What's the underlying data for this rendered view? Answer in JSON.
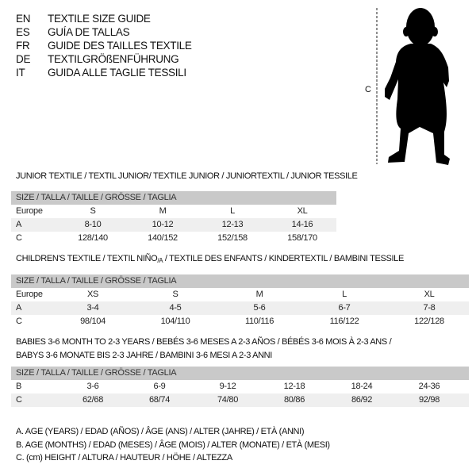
{
  "header": {
    "languages": [
      {
        "code": "EN",
        "title": "TEXTILE SIZE GUIDE"
      },
      {
        "code": "ES",
        "title": "GUÍA DE TALLAS"
      },
      {
        "code": "FR",
        "title": "GUIDE DES TAILLES TEXTILE"
      },
      {
        "code": "DE",
        "title": "TEXTILGRÖßENFÜHRUNG"
      },
      {
        "code": "IT",
        "title": "GUIDA ALLE TAGLIE TESSILI"
      }
    ]
  },
  "figure": {
    "icon": "child-silhouette-icon",
    "measure_label": "C"
  },
  "junior": {
    "title": "JUNIOR TEXTILE / TEXTIL JUNIOR/ TEXTILE JUNIOR / JUNIORTEXTIL / JUNIOR TESSILE",
    "header": "SIZE / TALLA / TAILLE / GRÖSSE / TAGLIA",
    "rows": [
      {
        "label": "Europe",
        "values": [
          "S",
          "M",
          "L",
          "XL"
        ]
      },
      {
        "label": "A",
        "values": [
          "8-10",
          "10-12",
          "12-13",
          "14-16"
        ]
      },
      {
        "label": "C",
        "values": [
          "128/140",
          "140/152",
          "152/158",
          "158/170"
        ]
      }
    ]
  },
  "children": {
    "title_main": "CHILDREN'S TEXTILE / TEXTIL NIÑO",
    "title_sub": "/A",
    "title_rest": " / TEXTILE DES ENFANTS / KINDERTEXTIL / BAMBINI TESSILE",
    "header": "SIZE / TALLA / TAILLE / GRÖSSE / TAGLIA",
    "rows": [
      {
        "label": "Europe",
        "values": [
          "XS",
          "S",
          "M",
          "L",
          "XL"
        ]
      },
      {
        "label": "A",
        "values": [
          "3-4",
          "4-5",
          "5-6",
          "6-7",
          "7-8"
        ]
      },
      {
        "label": "C",
        "values": [
          "98/104",
          "104/110",
          "110/116",
          "116/122",
          "122/128"
        ]
      }
    ]
  },
  "babies": {
    "title_line1": "BABIES 3-6 MONTH TO 2-3 YEARS / BEBÉS 3-6 MESES A 2-3 AÑOS / BÉBÉS 3-6 MOIS À 2-3 ANS /",
    "title_line2": "BABYS 3-6 MONATE BIS 2-3 JAHRE / BAMBINI 3-6 MESI A 2-3 ANNI",
    "header": "SIZE / TALLA / TAILLE / GRÖSSE / TAGLIA",
    "rows": [
      {
        "label": "B",
        "values": [
          "3-6",
          "6-9",
          "9-12",
          "12-18",
          "18-24",
          "24-36"
        ]
      },
      {
        "label": "C",
        "values": [
          "62/68",
          "68/74",
          "74/80",
          "80/86",
          "86/92",
          "92/98"
        ]
      }
    ]
  },
  "legend": [
    "A. AGE (YEARS) / EDAD (AÑOS) / ÂGE (ANS) / ALTER (JAHRE) / ETÀ (ANNI)",
    "B. AGE (MONTHS) / EDAD (MESES) / ÂGE (MOIS) / ALTER (MONATE) / ETÀ (MESI)",
    "C. (cm) HEIGHT / ALTURA / HAUTEUR / HÖHE / ALTEZZA"
  ],
  "colors": {
    "header_bg": "#c9c9c9",
    "alt_row_bg": "#efefef",
    "text": "#111111"
  }
}
